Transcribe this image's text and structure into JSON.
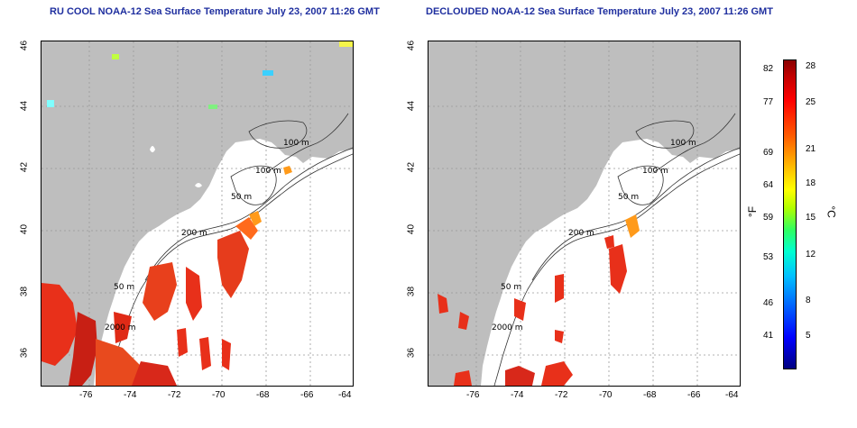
{
  "left_title": "RU COOL NOAA-12 Sea Surface Temperature July 23, 2007 11:26 GMT",
  "right_title": "DECLOUDED NOAA-12 Sea Surface Temperature July 23, 2007 11:26 GMT",
  "x_ticks": [
    "-76",
    "-74",
    "-72",
    "-70",
    "-68",
    "-66",
    "-64"
  ],
  "y_ticks": [
    "46",
    "44",
    "42",
    "40",
    "38",
    "36"
  ],
  "contour_labels": [
    "100 m",
    "100 m",
    "50 m",
    "200 m",
    "50 m",
    "2000 m"
  ],
  "colorbar": {
    "f_ticks": [
      "82",
      "77",
      "69",
      "64",
      "59",
      "53",
      "46",
      "41"
    ],
    "c_ticks": [
      "28",
      "25",
      "21",
      "18",
      "15",
      "12",
      "8",
      "5"
    ],
    "f_unit": "°F",
    "c_unit": "°C"
  },
  "colors": {
    "title": "#1f2f9f",
    "land": "#bebebe",
    "ocean": "#ffffff",
    "warm": "#e8301a",
    "hot": "#b51010",
    "orange": "#ff9a1a"
  }
}
